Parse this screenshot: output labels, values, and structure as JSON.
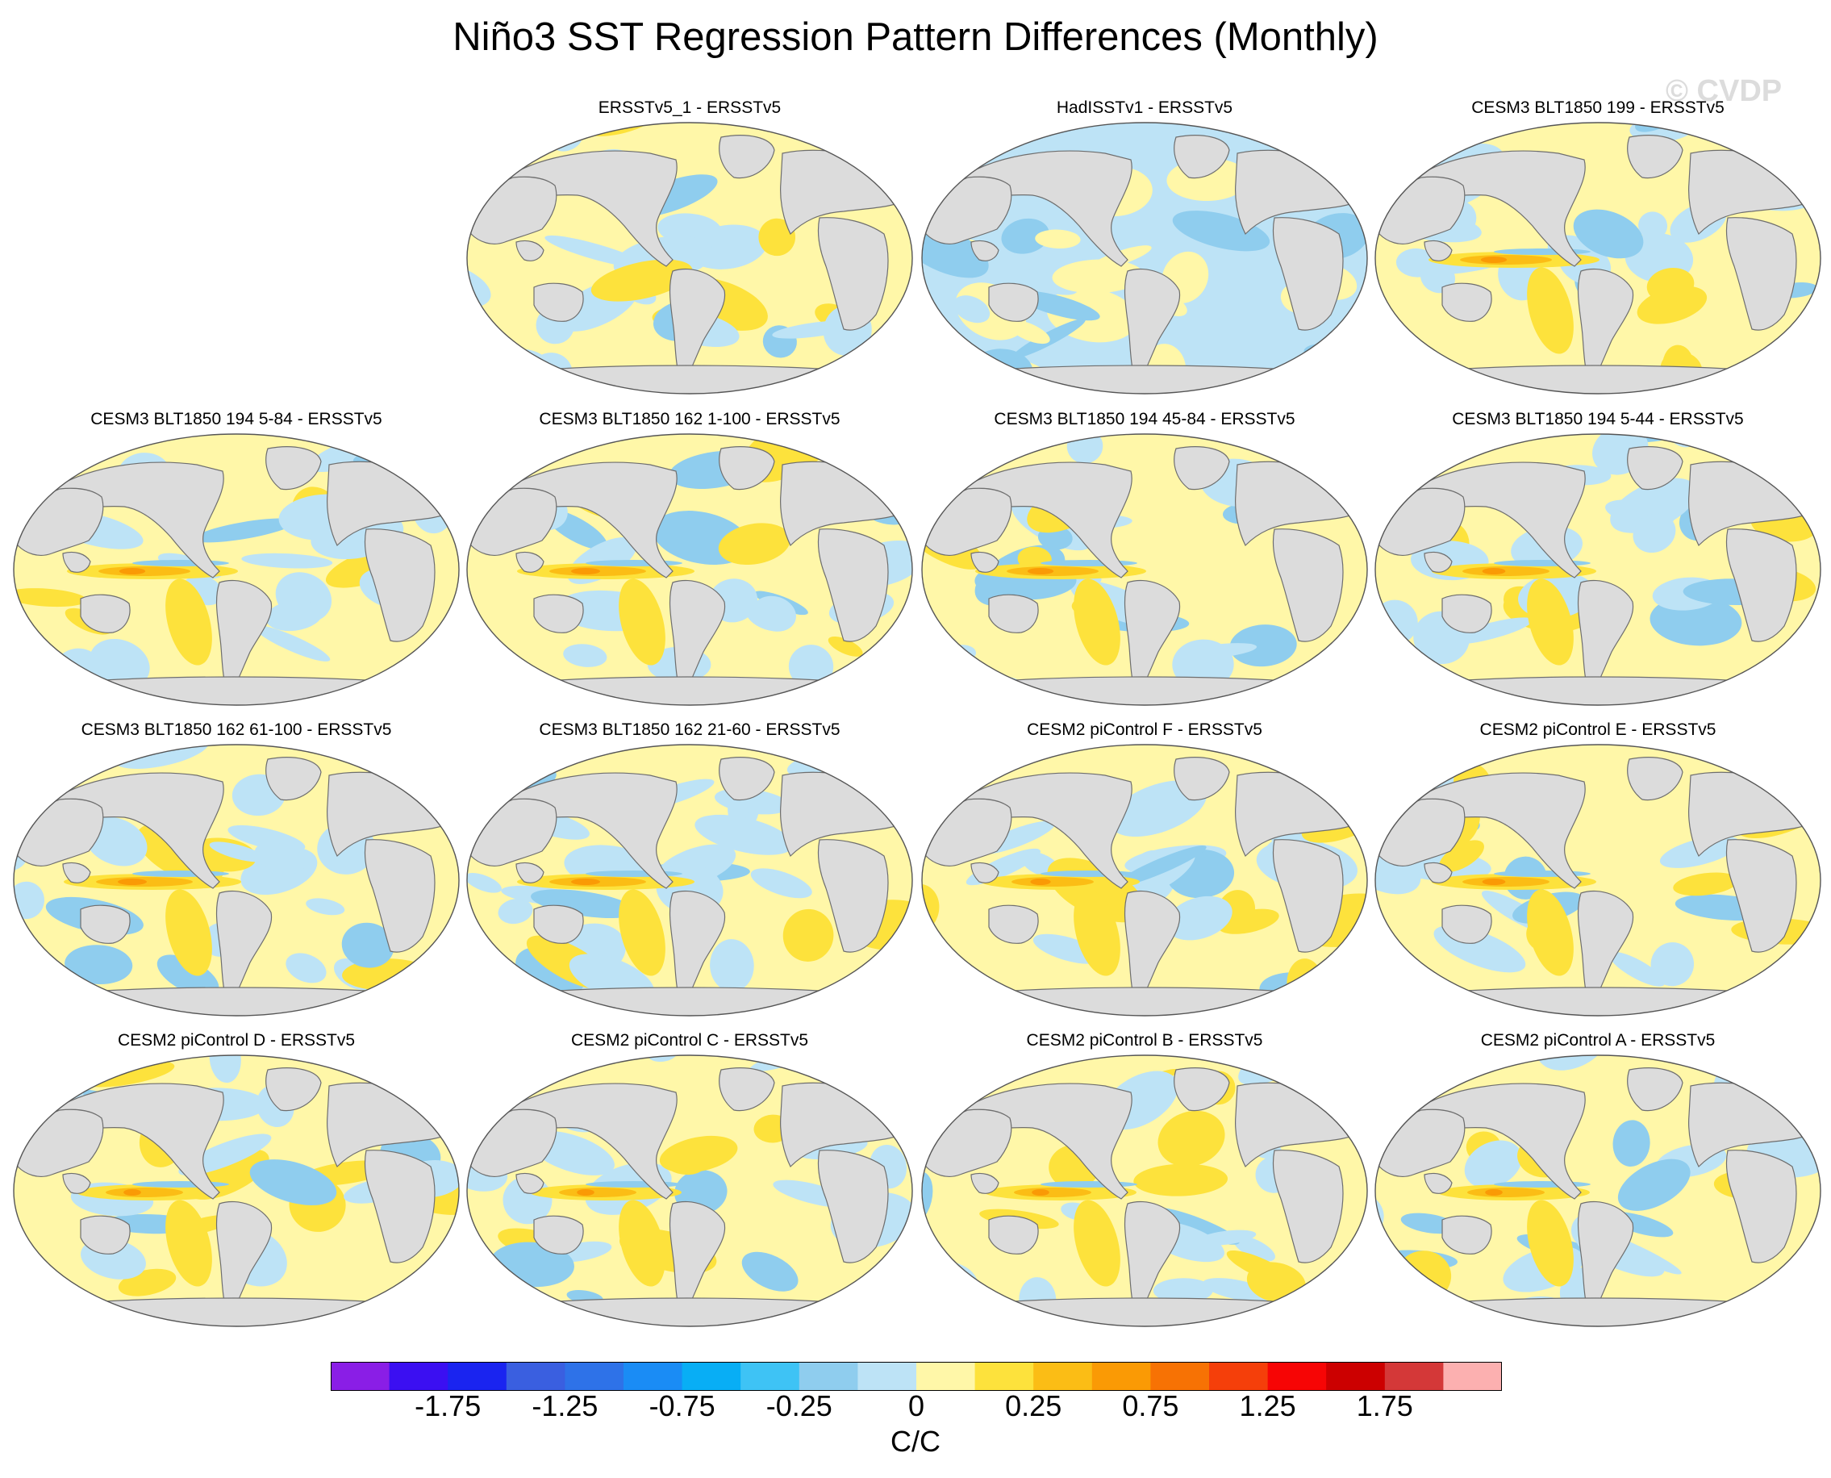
{
  "figure": {
    "title": "Niño3 SST Regression Pattern Differences (Monthly)",
    "watermark": "© CVDP"
  },
  "panels": [
    {
      "id": "p1",
      "title": "ERSSTv5_1 - ERSSTv5",
      "dominant": "mixed-light",
      "warm_pool": 0
    },
    {
      "id": "p2",
      "title": "HadISSTv1 - ERSSTv5",
      "dominant": "mixed-blue",
      "warm_pool": 0
    },
    {
      "id": "p3",
      "title": "CESM3 BLT1850 199 - ERSSTv5",
      "dominant": "warm-pacific",
      "warm_pool": 0.9
    },
    {
      "id": "p4",
      "title": "CESM3 BLT1850 194 5-84 - ERSSTv5",
      "dominant": "warm-pacific",
      "warm_pool": 0.9
    },
    {
      "id": "p5",
      "title": "CESM3 BLT1850 162 1-100 - ERSSTv5",
      "dominant": "warm-pacific",
      "warm_pool": 1.0
    },
    {
      "id": "p6",
      "title": "CESM3 BLT1850 194 45-84 - ERSSTv5",
      "dominant": "warm-pacific",
      "warm_pool": 0.9
    },
    {
      "id": "p7",
      "title": "CESM3 BLT1850 194 5-44 - ERSSTv5",
      "dominant": "warm-pacific",
      "warm_pool": 0.8
    },
    {
      "id": "p8",
      "title": "CESM3 BLT1850 162 61-100 - ERSSTv5",
      "dominant": "warm-pacific",
      "warm_pool": 1.0
    },
    {
      "id": "p9",
      "title": "CESM3 BLT1850 162 21-60 - ERSSTv5",
      "dominant": "warm-pacific",
      "warm_pool": 1.0
    },
    {
      "id": "p10",
      "title": "CESM2 piControl F - ERSSTv5",
      "dominant": "warm-pacific",
      "warm_pool": 0.7
    },
    {
      "id": "p11",
      "title": "CESM2 piControl E - ERSSTv5",
      "dominant": "warm-pacific",
      "warm_pool": 0.8
    },
    {
      "id": "p12",
      "title": "CESM2 piControl D - ERSSTv5",
      "dominant": "warm-pacific",
      "warm_pool": 0.6
    },
    {
      "id": "p13",
      "title": "CESM2 piControl C - ERSSTv5",
      "dominant": "warm-pacific",
      "warm_pool": 0.6
    },
    {
      "id": "p14",
      "title": "CESM2 piControl B - ERSSTv5",
      "dominant": "warm-pacific",
      "warm_pool": 0.6
    },
    {
      "id": "p15",
      "title": "CESM2 piControl A - ERSSTv5",
      "dominant": "warm-pacific",
      "warm_pool": 0.6
    }
  ],
  "colorbar": {
    "colors": [
      "#8a1ee6",
      "#3b0ff2",
      "#1a24f0",
      "#3a5fe0",
      "#2e72e8",
      "#1a8cf5",
      "#08aef5",
      "#3ec3f5",
      "#8fcdee",
      "#bde3f6",
      "#fff7a8",
      "#fde23c",
      "#fbbd15",
      "#fa9a05",
      "#f77204",
      "#f53f0a",
      "#f70505",
      "#cc0000",
      "#d43838",
      "#fcb0b0"
    ],
    "tick_labels": [
      "-1.75",
      "-1.25",
      "-0.75",
      "-0.25",
      "0",
      "0.25",
      "0.75",
      "1.25",
      "1.75"
    ],
    "units": "C/C"
  },
  "map_colors": {
    "land": "#dcdcdc",
    "coast": "#6e6e6e",
    "neutral_warm": "#fff7a8",
    "neutral_cool": "#bde3f6",
    "warm": "#fde23c",
    "warmer": "#fbbd15",
    "hot": "#fa9a05",
    "cool": "#8fcdee",
    "cold": "#3ec3f5"
  }
}
